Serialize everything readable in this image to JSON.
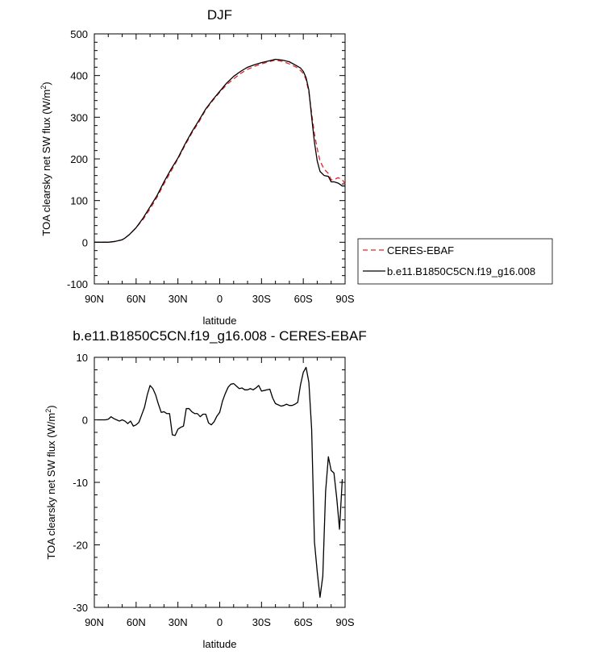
{
  "chart_data": [
    {
      "type": "line",
      "title": "DJF",
      "xlabel": "latitude",
      "ylabel": "TOA clearsky net SW flux (W/m",
      "ylabel_sup": "2",
      "ylabel_end": ")",
      "xlim": [
        90,
        -90
      ],
      "ylim": [
        -100,
        500
      ],
      "xticks": [
        90,
        60,
        30,
        0,
        -30,
        -60,
        -90
      ],
      "xtick_labels": [
        "90N",
        "60N",
        "30N",
        "0",
        "30S",
        "60S",
        "90S"
      ],
      "yticks": [
        -100,
        0,
        100,
        200,
        300,
        400,
        500
      ],
      "ytick_labels": [
        "-100",
        "0",
        "100",
        "200",
        "300",
        "400",
        "500"
      ],
      "grid": false,
      "legend_position": "right",
      "series": [
        {
          "name": "CERES-EBAF",
          "color": "#e8202a",
          "dash": "dashed",
          "x": [
            90,
            80,
            75,
            70,
            68,
            65,
            60,
            55,
            50,
            45,
            40,
            35,
            30,
            25,
            20,
            15,
            10,
            5,
            0,
            -5,
            -10,
            -15,
            -20,
            -25,
            -30,
            -35,
            -40,
            -45,
            -50,
            -55,
            -58,
            -60,
            -62,
            -64,
            -66,
            -68,
            -70,
            -72,
            -75,
            -78,
            -80,
            -82,
            -85,
            -88,
            -90
          ],
          "y": [
            0,
            0,
            2,
            6,
            10,
            18,
            35,
            55,
            80,
            108,
            140,
            170,
            200,
            232,
            262,
            288,
            318,
            340,
            360,
            378,
            392,
            405,
            415,
            422,
            428,
            433,
            437,
            434,
            428,
            420,
            412,
            405,
            390,
            360,
            310,
            260,
            225,
            195,
            175,
            165,
            150,
            150,
            155,
            150,
            140
          ]
        },
        {
          "name": "b.e11.B1850C5CN.f19_g16.008",
          "color": "#000000",
          "dash": "solid",
          "x": [
            90,
            80,
            75,
            70,
            68,
            65,
            60,
            55,
            50,
            45,
            40,
            35,
            30,
            25,
            20,
            15,
            10,
            5,
            0,
            -5,
            -10,
            -15,
            -20,
            -25,
            -30,
            -35,
            -40,
            -45,
            -50,
            -55,
            -58,
            -60,
            -62,
            -64,
            -66,
            -68,
            -70,
            -72,
            -75,
            -78,
            -80,
            -82,
            -85,
            -88,
            -90
          ],
          "y": [
            0,
            0,
            2,
            6,
            10,
            18,
            35,
            58,
            85,
            112,
            145,
            175,
            202,
            235,
            265,
            292,
            320,
            342,
            362,
            382,
            398,
            410,
            420,
            426,
            431,
            435,
            439,
            437,
            433,
            424,
            418,
            410,
            395,
            365,
            300,
            240,
            195,
            170,
            160,
            158,
            145,
            145,
            142,
            135,
            135
          ]
        }
      ]
    },
    {
      "type": "line",
      "title": "b.e11.B1850C5CN.f19_g16.008 - CERES-EBAF",
      "xlabel": "latitude",
      "ylabel": "TOA clearsky net SW flux (W/m",
      "ylabel_sup": "2",
      "ylabel_end": ")",
      "xlim": [
        90,
        -90
      ],
      "ylim": [
        -30,
        10
      ],
      "xticks": [
        90,
        60,
        30,
        0,
        -30,
        -60,
        -90
      ],
      "xtick_labels": [
        "90N",
        "60N",
        "30N",
        "0",
        "30S",
        "60S",
        "90S"
      ],
      "yticks": [
        -30,
        -20,
        -10,
        0,
        10
      ],
      "ytick_labels": [
        "-30",
        "-20",
        "-10",
        "0",
        "10"
      ],
      "grid": false,
      "series": [
        {
          "color": "#000000",
          "x": [
            88,
            82,
            80,
            78,
            76,
            74,
            72,
            70,
            68,
            66,
            64,
            62,
            60,
            58,
            56,
            54,
            52,
            50,
            48,
            46,
            44,
            42,
            40,
            38,
            36,
            34,
            32,
            30,
            28,
            26,
            24,
            22,
            20,
            18,
            16,
            14,
            12,
            10,
            8,
            6,
            4,
            2,
            0,
            -2,
            -4,
            -6,
            -8,
            -10,
            -12,
            -14,
            -16,
            -18,
            -20,
            -22,
            -24,
            -26,
            -28,
            -30,
            -32,
            -34,
            -36,
            -38,
            -40,
            -42,
            -44,
            -46,
            -48,
            -50,
            -52,
            -54,
            -56,
            -58,
            -60,
            -62,
            -64,
            -66,
            -68,
            -70,
            -72,
            -74,
            -76,
            -78,
            -80,
            -82,
            -84,
            -86,
            -88
          ],
          "y": [
            0,
            0,
            0.1,
            0.5,
            0.2,
            0,
            -0.2,
            0,
            -0.2,
            -0.6,
            -0.2,
            -1.0,
            -0.8,
            -0.4,
            0.8,
            2.0,
            4.0,
            5.5,
            5.0,
            4.0,
            2.5,
            1.2,
            1.3,
            1.0,
            1.0,
            -2.4,
            -2.5,
            -1.5,
            -1.2,
            -1.0,
            1.8,
            1.8,
            1.3,
            1.0,
            1.0,
            0.5,
            0.9,
            0.9,
            -0.5,
            -0.8,
            -0.3,
            0.6,
            1.2,
            3.0,
            4.2,
            5.2,
            5.7,
            5.8,
            5.4,
            5.0,
            5.1,
            4.8,
            4.8,
            5.0,
            4.8,
            5.1,
            5.5,
            4.6,
            4.7,
            4.8,
            4.9,
            3.5,
            2.6,
            2.4,
            2.2,
            2.3,
            2.5,
            2.3,
            2.3,
            2.5,
            2.8,
            5.6,
            7.6,
            8.4,
            6.0,
            -1.5,
            -19.5,
            -24.3,
            -28.4,
            -25.0,
            -11.5,
            -5.9,
            -8.1,
            -8.5,
            -12.5,
            -17.5,
            -9.5
          ]
        }
      ]
    }
  ]
}
